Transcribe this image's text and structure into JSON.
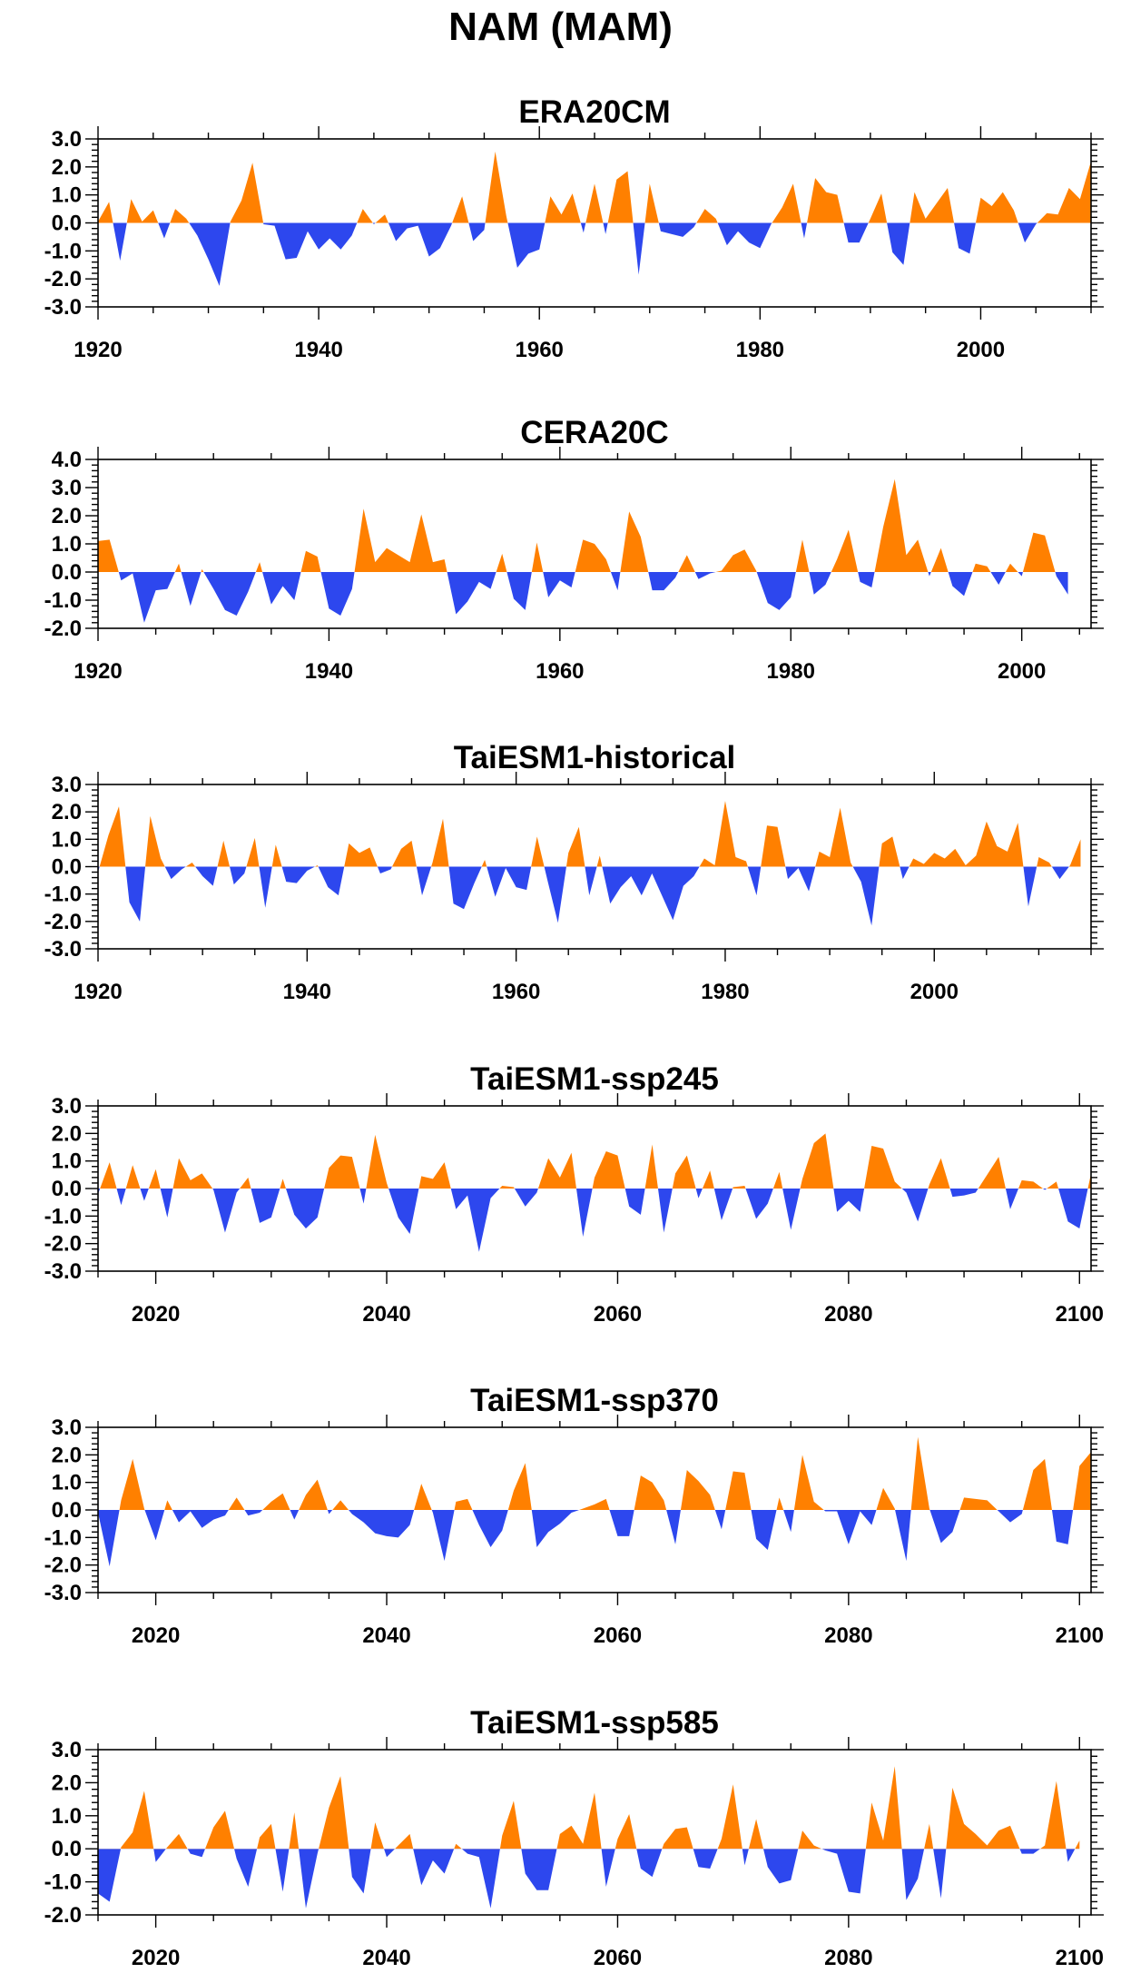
{
  "title": "NAM (MAM)",
  "colors": {
    "positive": "#ff8000",
    "negative": "#2d47ee",
    "axis": "#000000"
  },
  "chart_data": [
    {
      "type": "area",
      "title": "ERA20CM",
      "xlim": [
        1920,
        2010
      ],
      "ylim": [
        -3.0,
        3.0
      ],
      "xticks": [
        1920,
        1940,
        1960,
        1980,
        2000
      ],
      "yticks": [
        -3.0,
        -2.0,
        -1.0,
        0.0,
        1.0,
        2.0,
        3.0
      ],
      "ytick_labels": [
        "-3.0",
        "-2.0",
        "-1.0",
        "0.0",
        "1.0",
        "2.0",
        "3.0"
      ],
      "xstart": 1920,
      "values": [
        0.05,
        0.75,
        -1.35,
        0.85,
        0.05,
        0.45,
        -0.55,
        0.5,
        0.15,
        -0.45,
        -1.3,
        -2.25,
        0.05,
        0.8,
        2.15,
        -0.05,
        -0.1,
        -1.3,
        -1.25,
        -0.3,
        -0.95,
        -0.55,
        -0.95,
        -0.45,
        0.5,
        -0.05,
        0.3,
        -0.65,
        -0.2,
        -0.1,
        -1.2,
        -0.9,
        -0.1,
        0.95,
        -0.65,
        -0.25,
        2.55,
        0.25,
        -1.6,
        -1.1,
        -0.95,
        0.95,
        0.3,
        1.05,
        -0.35,
        1.4,
        -0.4,
        1.55,
        1.85,
        -1.85,
        1.4,
        -0.3,
        -0.4,
        -0.5,
        -0.15,
        0.5,
        0.15,
        -0.8,
        -0.3,
        -0.7,
        -0.9,
        -0.05,
        0.55,
        1.4,
        -0.55,
        1.6,
        1.1,
        1.0,
        -0.7,
        -0.7,
        0.15,
        1.05,
        -1.05,
        -1.5,
        1.1,
        0.15,
        0.7,
        1.25,
        -0.9,
        -1.1,
        0.9,
        0.6,
        1.1,
        0.45,
        -0.7,
        -0.05,
        0.35,
        0.3,
        1.25,
        0.85,
        2.2,
        -1.0
      ]
    },
    {
      "type": "area",
      "title": "CERA20C",
      "xlim": [
        1920,
        2006
      ],
      "ylim": [
        -2.0,
        4.0
      ],
      "xticks": [
        1920,
        1940,
        1960,
        1980,
        2000
      ],
      "yticks": [
        -2.0,
        -1.0,
        0.0,
        1.0,
        2.0,
        3.0,
        4.0
      ],
      "ytick_labels": [
        "-2.0",
        "-1.0",
        "0.0",
        "1.0",
        "2.0",
        "3.0",
        "4.0"
      ],
      "xstart": 1920,
      "values": [
        1.1,
        1.15,
        -0.3,
        -0.05,
        -1.8,
        -0.65,
        -0.6,
        0.3,
        -1.2,
        0.1,
        -0.6,
        -1.35,
        -1.55,
        -0.7,
        0.35,
        -1.15,
        -0.5,
        -1.0,
        0.75,
        0.55,
        -1.3,
        -1.55,
        -0.6,
        2.25,
        0.35,
        0.85,
        0.6,
        0.35,
        2.05,
        0.35,
        0.45,
        -1.5,
        -1.05,
        -0.35,
        -0.6,
        0.65,
        -0.95,
        -1.35,
        1.05,
        -0.9,
        -0.3,
        -0.55,
        1.15,
        1.0,
        0.45,
        -0.65,
        2.15,
        1.25,
        -0.65,
        -0.65,
        -0.2,
        0.6,
        -0.25,
        -0.05,
        0.05,
        0.6,
        0.8,
        0.05,
        -1.1,
        -1.35,
        -0.9,
        1.15,
        -0.8,
        -0.45,
        0.45,
        1.5,
        -0.35,
        -0.55,
        1.6,
        3.3,
        0.6,
        1.15,
        -0.15,
        0.85,
        -0.5,
        -0.85,
        0.3,
        0.2,
        -0.45,
        0.3,
        -0.15,
        1.4,
        1.3,
        -0.15,
        -0.8
      ]
    },
    {
      "type": "area",
      "title": "TaiESM1-historical",
      "xlim": [
        1920,
        2015
      ],
      "ylim": [
        -3.0,
        3.0
      ],
      "xticks": [
        1920,
        1940,
        1960,
        1980,
        2000
      ],
      "yticks": [
        -3.0,
        -2.0,
        -1.0,
        0.0,
        1.0,
        2.0,
        3.0
      ],
      "ytick_labels": [
        "-3.0",
        "-2.0",
        "-1.0",
        "0.0",
        "1.0",
        "2.0",
        "3.0"
      ],
      "xstart": 1920,
      "values": [
        -0.2,
        1.15,
        2.2,
        -1.3,
        -2.0,
        1.85,
        0.3,
        -0.45,
        -0.1,
        0.15,
        -0.35,
        -0.7,
        0.95,
        -0.65,
        -0.25,
        1.05,
        -1.5,
        0.8,
        -0.55,
        -0.6,
        -0.15,
        0.05,
        -0.75,
        -1.05,
        0.85,
        0.5,
        0.7,
        -0.25,
        -0.1,
        0.65,
        0.95,
        -1.05,
        0.15,
        1.75,
        -1.35,
        -1.55,
        -0.6,
        0.25,
        -1.1,
        -0.05,
        -0.75,
        -0.85,
        1.1,
        -0.5,
        -2.05,
        0.5,
        1.45,
        -1.05,
        0.4,
        -1.35,
        -0.75,
        -0.35,
        -1.05,
        -0.25,
        -1.1,
        -1.95,
        -0.7,
        -0.35,
        0.3,
        0.05,
        2.4,
        0.35,
        0.2,
        -1.05,
        1.5,
        1.45,
        -0.45,
        -0.05,
        -0.9,
        0.55,
        0.35,
        2.15,
        0.15,
        -0.55,
        -2.15,
        0.85,
        1.1,
        -0.45,
        0.3,
        0.1,
        0.5,
        0.3,
        0.65,
        0.05,
        0.4,
        1.65,
        0.75,
        0.55,
        1.6,
        -1.45,
        0.35,
        0.15,
        -0.45,
        0.05,
        1.0
      ]
    },
    {
      "type": "area",
      "title": "TaiESM1-ssp245",
      "xlim": [
        2015,
        2101
      ],
      "ylim": [
        -3.0,
        3.0
      ],
      "xticks": [
        2020,
        2040,
        2060,
        2080,
        2100
      ],
      "yticks": [
        -3.0,
        -2.0,
        -1.0,
        0.0,
        1.0,
        2.0,
        3.0
      ],
      "ytick_labels": [
        "-3.0",
        "-2.0",
        "-1.0",
        "0.0",
        "1.0",
        "2.0",
        "3.0"
      ],
      "xstart": 2015,
      "values": [
        -0.2,
        0.95,
        -0.6,
        0.85,
        -0.45,
        0.7,
        -1.05,
        1.1,
        0.3,
        0.55,
        -0.05,
        -1.6,
        -0.15,
        0.4,
        -1.25,
        -1.05,
        0.35,
        -0.95,
        -1.45,
        -1.05,
        0.75,
        1.2,
        1.15,
        -0.55,
        1.95,
        0.2,
        -1.05,
        -1.65,
        0.45,
        0.35,
        0.95,
        -0.75,
        -0.25,
        -2.3,
        -0.35,
        0.1,
        0.05,
        -0.65,
        -0.15,
        1.1,
        0.4,
        1.3,
        -1.75,
        0.4,
        1.35,
        1.2,
        -0.65,
        -0.95,
        1.6,
        -1.6,
        0.55,
        1.2,
        -0.35,
        0.65,
        -1.15,
        0.05,
        0.1,
        -1.1,
        -0.55,
        0.6,
        -1.5,
        0.35,
        1.65,
        2.0,
        -0.85,
        -0.45,
        -0.85,
        1.55,
        1.45,
        0.25,
        -0.15,
        -1.2,
        0.15,
        1.1,
        -0.3,
        -0.25,
        -0.15,
        0.5,
        1.15,
        -0.75,
        0.3,
        0.25,
        -0.05,
        0.25,
        -1.2,
        -1.45,
        0.55,
        0.8
      ]
    },
    {
      "type": "area",
      "title": "TaiESM1-ssp370",
      "xlim": [
        2015,
        2101
      ],
      "ylim": [
        -3.0,
        3.0
      ],
      "xticks": [
        2020,
        2040,
        2060,
        2080,
        2100
      ],
      "yticks": [
        -3.0,
        -2.0,
        -1.0,
        0.0,
        1.0,
        2.0,
        3.0
      ],
      "ytick_labels": [
        "-3.0",
        "-2.0",
        "-1.0",
        "0.0",
        "1.0",
        "2.0",
        "3.0"
      ],
      "xstart": 2015,
      "values": [
        -0.1,
        -2.05,
        0.35,
        1.85,
        0.05,
        -1.1,
        0.35,
        -0.45,
        -0.05,
        -0.65,
        -0.35,
        -0.2,
        0.45,
        -0.2,
        -0.1,
        0.3,
        0.6,
        -0.35,
        0.55,
        1.1,
        -0.15,
        0.35,
        -0.15,
        -0.45,
        -0.85,
        -0.95,
        -1.0,
        -0.55,
        0.95,
        -0.1,
        -1.85,
        0.3,
        0.4,
        -0.55,
        -1.35,
        -0.75,
        0.7,
        1.7,
        -1.35,
        -0.8,
        -0.5,
        -0.1,
        0.05,
        0.2,
        0.4,
        -0.95,
        -0.95,
        1.25,
        1.0,
        0.35,
        -1.25,
        1.45,
        1.05,
        0.55,
        -0.7,
        1.4,
        1.35,
        -1.05,
        -1.45,
        0.45,
        -0.8,
        2.0,
        0.3,
        -0.05,
        -0.05,
        -1.25,
        -0.05,
        -0.55,
        0.8,
        0.05,
        -1.85,
        2.65,
        0.05,
        -1.2,
        -0.8,
        0.45,
        0.4,
        0.35,
        -0.05,
        -0.45,
        -0.15,
        1.45,
        1.85,
        -1.15,
        -1.25,
        1.6,
        2.1,
        -0.35,
        -0.25
      ]
    },
    {
      "type": "area",
      "title": "TaiESM1-ssp585",
      "xlim": [
        2015,
        2101
      ],
      "ylim": [
        -2.0,
        3.0
      ],
      "xticks": [
        2020,
        2040,
        2060,
        2080,
        2100
      ],
      "yticks": [
        -2.0,
        -1.0,
        0.0,
        1.0,
        2.0,
        3.0
      ],
      "ytick_labels": [
        "-2.0",
        "-1.0",
        "0.0",
        "1.0",
        "2.0",
        "3.0"
      ],
      "xstart": 2015,
      "values": [
        -1.35,
        -1.6,
        0.05,
        0.5,
        1.75,
        -0.4,
        0.05,
        0.45,
        -0.15,
        -0.25,
        0.65,
        1.15,
        -0.3,
        -1.15,
        0.35,
        0.75,
        -1.3,
        1.1,
        -1.8,
        -0.15,
        1.25,
        2.2,
        -0.85,
        -1.35,
        0.8,
        -0.25,
        0.1,
        0.45,
        -1.1,
        -0.35,
        -0.75,
        0.15,
        -0.15,
        -0.25,
        -1.8,
        0.4,
        1.45,
        -0.75,
        -1.25,
        -1.25,
        0.45,
        0.7,
        0.15,
        1.7,
        -1.15,
        0.3,
        1.05,
        -0.6,
        -0.85,
        0.15,
        0.6,
        0.65,
        -0.55,
        -0.6,
        0.3,
        1.95,
        -0.5,
        0.9,
        -0.55,
        -1.05,
        -0.95,
        0.55,
        0.1,
        -0.05,
        -0.15,
        -1.3,
        -1.35,
        1.4,
        0.25,
        2.5,
        -1.55,
        -0.9,
        0.75,
        -1.5,
        1.85,
        0.75,
        0.45,
        0.1,
        0.55,
        0.7,
        -0.15,
        -0.15,
        0.1,
        2.05,
        -0.4,
        0.25
      ]
    }
  ]
}
